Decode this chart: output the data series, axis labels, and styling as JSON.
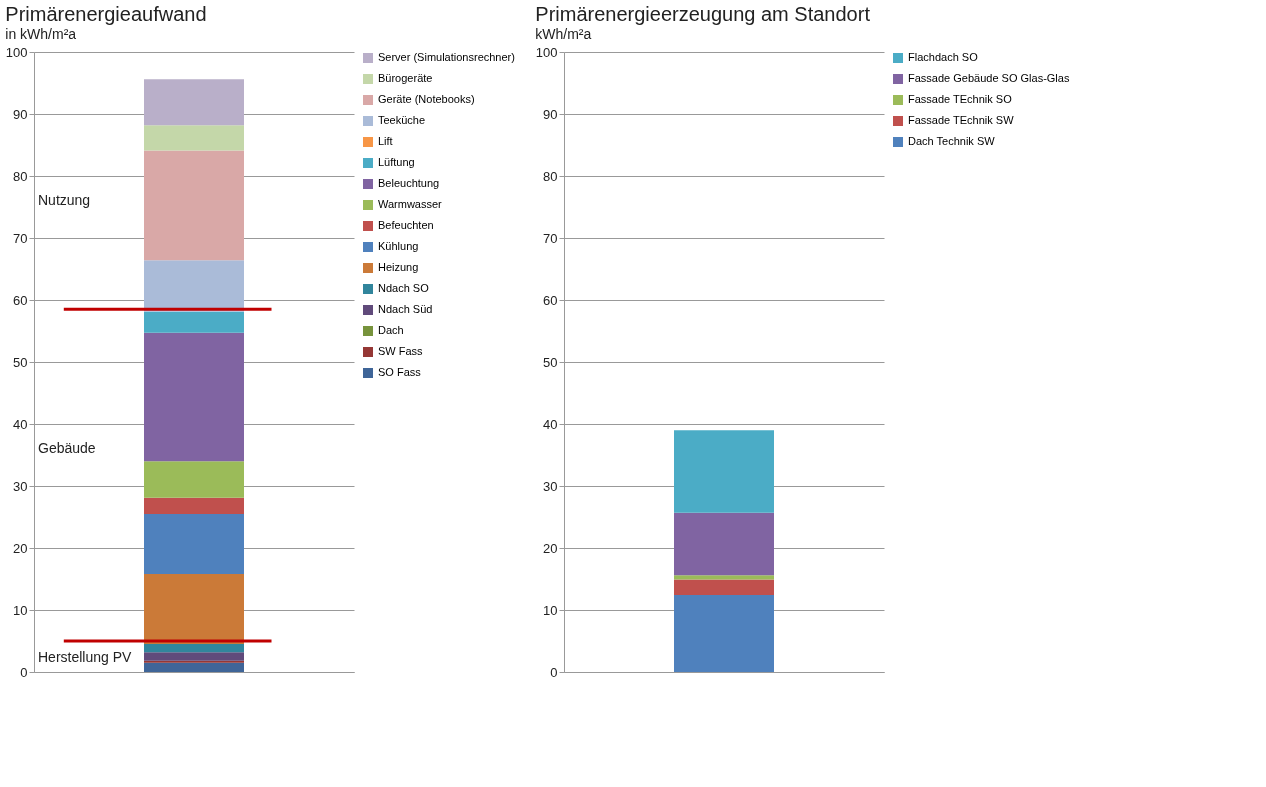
{
  "chart_data": [
    {
      "type": "bar",
      "title": "Primärenergieaufwand",
      "subtitle": "in kWh/m²a",
      "categories": [
        null
      ],
      "stacked": true,
      "ylim": [
        0,
        100
      ],
      "yticks": [
        0,
        10,
        20,
        30,
        40,
        50,
        60,
        70,
        80,
        90,
        100
      ],
      "grid": "y",
      "legend": "right",
      "tick_labels": "y",
      "series": [
        {
          "name": "SO Fass",
          "color": "#3f6598",
          "values": [
            1.5
          ]
        },
        {
          "name": "SW Fass",
          "color": "#953735",
          "values": [
            0.3
          ]
        },
        {
          "name": "Dach",
          "color": "#77933c",
          "values": [
            0
          ]
        },
        {
          "name": "Ndach Süd",
          "color": "#604a7b",
          "values": [
            1.4
          ]
        },
        {
          "name": "Ndach SO",
          "color": "#31859c",
          "values": [
            1.3
          ]
        },
        {
          "name": "Heizung",
          "color": "#cb7a38",
          "values": [
            11.3
          ]
        },
        {
          "name": "Kühlung",
          "color": "#4f81bd",
          "values": [
            9.7
          ]
        },
        {
          "name": "Befeuchten",
          "color": "#c0504d",
          "values": [
            2.6
          ]
        },
        {
          "name": "Warmwasser",
          "color": "#9bbb59",
          "values": [
            5.9
          ]
        },
        {
          "name": "Beleuchtung",
          "color": "#8064a2",
          "values": [
            20.7
          ]
        },
        {
          "name": "Lüftung",
          "color": "#4bacc6",
          "values": [
            3.4
          ]
        },
        {
          "name": "Lift",
          "color": "#f79646",
          "values": [
            0
          ]
        },
        {
          "name": "Teeküche",
          "color": "#aabbd8",
          "values": [
            8.3
          ]
        },
        {
          "name": "Geräte (Notebooks)",
          "color": "#d9a8a7",
          "values": [
            17.7
          ]
        },
        {
          "name": "Bürogeräte",
          "color": "#c4d7a9",
          "values": [
            4.1
          ]
        },
        {
          "name": "Server (Simulationsrechner)",
          "color": "#b9afc9",
          "values": [
            7.4
          ]
        }
      ],
      "ref_lines": [
        {
          "axis": "y",
          "value": 58.5,
          "color": "#c00000"
        },
        {
          "axis": "y",
          "value": 5,
          "color": "#c00000"
        }
      ],
      "annotations": [
        "Nutzung",
        "Gebäude",
        "Herstellung PV"
      ]
    },
    {
      "type": "bar",
      "title": "Primärenergieerzeugung am Standort",
      "subtitle": "kWh/m²a",
      "categories": [
        null
      ],
      "stacked": true,
      "ylim": [
        0,
        100
      ],
      "yticks": [
        0,
        10,
        20,
        30,
        40,
        50,
        60,
        70,
        80,
        90,
        100
      ],
      "grid": "y",
      "legend": "right",
      "tick_labels": "y",
      "series": [
        {
          "name": "Dach Technik SW",
          "color": "#4f81bd",
          "values": [
            12.4
          ]
        },
        {
          "name": "Fassade TEchnik SW",
          "color": "#c0504d",
          "values": [
            2.5
          ]
        },
        {
          "name": "Fassade TEchnik SO",
          "color": "#9bbb59",
          "values": [
            0.7
          ]
        },
        {
          "name": "Fassade Gebäude SO Glas-Glas",
          "color": "#8064a2",
          "values": [
            10.1
          ]
        },
        {
          "name": "Flachdach SO",
          "color": "#4bacc6",
          "values": [
            13.3
          ]
        }
      ]
    }
  ]
}
